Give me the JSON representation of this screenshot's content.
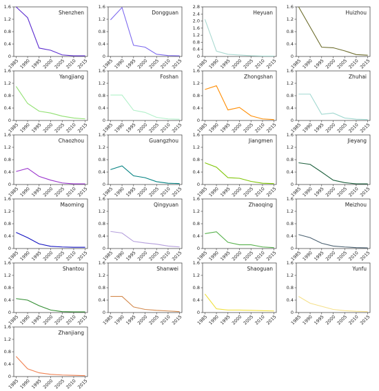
{
  "chart_data": [
    {
      "type": "line",
      "title": "Shenzhen",
      "x": [
        1985,
        1990,
        1995,
        2000,
        2005,
        2010,
        2015
      ],
      "values": [
        1.6,
        1.25,
        0.27,
        0.2,
        0.05,
        0.02,
        0.02
      ],
      "color": "#5b2ccf",
      "xlim": [
        1984,
        2016
      ],
      "xticks": [
        1985,
        1990,
        1995,
        2000,
        2005,
        2010,
        2015
      ],
      "ylim": [
        0,
        1.6
      ],
      "yticks": [
        0,
        0.4,
        0.8,
        1.2,
        1.6
      ]
    },
    {
      "type": "line",
      "title": "Dongguan",
      "x": [
        1985,
        1990,
        1995,
        2000,
        2005,
        2010,
        2015
      ],
      "values": [
        1.18,
        1.58,
        0.36,
        0.3,
        0.07,
        0.03,
        0.02
      ],
      "color": "#7b68ee",
      "xlim": [
        1984,
        2016
      ],
      "xticks": [
        1985,
        1990,
        1995,
        2000,
        2005,
        2010,
        2015
      ],
      "ylim": [
        0,
        1.6
      ],
      "yticks": [
        0,
        0.4,
        0.8,
        1.2,
        1.6
      ]
    },
    {
      "type": "line",
      "title": "Heyuan",
      "x": [
        1985,
        1990,
        1995,
        2000,
        2005,
        2010,
        2015
      ],
      "values": [
        2.1,
        0.3,
        0.12,
        0.08,
        0.04,
        0.02,
        0.02
      ],
      "color": "#a8d8d0",
      "xlim": [
        1984,
        2016
      ],
      "xticks": [
        1985,
        1990,
        1995,
        2000,
        2005,
        2010,
        2015
      ],
      "ylim": [
        0,
        2.8
      ],
      "yticks": [
        0,
        0.4,
        0.8,
        1.2,
        1.6,
        {
          "value": 2,
          "label": "2.0"
        },
        2.4,
        2.8
      ]
    },
    {
      "type": "line",
      "title": "Huizhou",
      "x": [
        1985,
        1990,
        1995,
        2000,
        2005,
        2010,
        2015
      ],
      "values": [
        1.6,
        0.95,
        0.3,
        0.28,
        0.18,
        0.06,
        0.04
      ],
      "color": "#6b6b2a",
      "xlim": [
        1984,
        2016
      ],
      "xticks": [
        1985,
        1990,
        1995,
        2000,
        2005,
        2010,
        2015
      ],
      "ylim": [
        0,
        1.6
      ],
      "yticks": [
        0,
        0.4,
        0.8,
        1.2,
        1.6
      ]
    },
    {
      "type": "line",
      "title": "Yangjiang",
      "x": [
        1985,
        1990,
        1995,
        2000,
        2005,
        2010,
        2015
      ],
      "values": [
        1.1,
        0.55,
        0.3,
        0.24,
        0.14,
        0.08,
        0.05
      ],
      "color": "#90e070",
      "xlim": [
        1984,
        2016
      ],
      "xticks": [
        1985,
        1990,
        1995,
        2000,
        2005,
        2010,
        2015
      ],
      "ylim": [
        0,
        1.6
      ],
      "yticks": [
        0,
        0.4,
        0.8,
        1.2,
        1.6
      ]
    },
    {
      "type": "line",
      "title": "Foshan",
      "x": [
        1985,
        1990,
        1995,
        2000,
        2005,
        2010,
        2015
      ],
      "values": [
        0.82,
        0.82,
        0.33,
        0.26,
        0.1,
        0.05,
        0.04
      ],
      "color": "#b0f0c8",
      "xlim": [
        1984,
        2016
      ],
      "xticks": [
        1985,
        1990,
        1995,
        2000,
        2005,
        2010,
        2015
      ],
      "ylim": [
        0,
        1.6
      ],
      "yticks": [
        0,
        0.4,
        0.8,
        1.2,
        1.6
      ]
    },
    {
      "type": "line",
      "title": "Zhongshan",
      "x": [
        1985,
        1990,
        1995,
        2000,
        2005,
        2010,
        2015
      ],
      "values": [
        1.0,
        1.12,
        0.34,
        0.42,
        0.15,
        0.05,
        0.03
      ],
      "color": "#ff8c00",
      "xlim": [
        1984,
        2016
      ],
      "xticks": [
        1985,
        1990,
        1995,
        2000,
        2005,
        2010,
        2015
      ],
      "ylim": [
        0,
        1.6
      ],
      "yticks": [
        0,
        0.4,
        0.8,
        1.2,
        1.6
      ]
    },
    {
      "type": "line",
      "title": "Zhuhai",
      "x": [
        1985,
        1990,
        1995,
        2000,
        2005,
        2010,
        2015
      ],
      "values": [
        0.85,
        0.85,
        0.2,
        0.24,
        0.08,
        0.04,
        0.03
      ],
      "color": "#a0d8d0",
      "xlim": [
        1984,
        2016
      ],
      "xticks": [
        1985,
        1990,
        1995,
        2000,
        2005,
        2010,
        2015
      ],
      "ylim": [
        0,
        1.6
      ],
      "yticks": [
        0,
        0.4,
        0.8,
        1.2,
        1.6
      ]
    },
    {
      "type": "line",
      "title": "Chaozhou",
      "x": [
        1985,
        1990,
        1995,
        2000,
        2005,
        2010,
        2015
      ],
      "values": [
        0.42,
        0.52,
        0.26,
        0.14,
        0.05,
        0.02,
        0.02
      ],
      "color": "#9932cc",
      "xlim": [
        1984,
        2016
      ],
      "xticks": [
        1985,
        1990,
        1995,
        2000,
        2005,
        2010,
        2015
      ],
      "ylim": [
        0,
        1.6
      ],
      "yticks": [
        0,
        0.4,
        0.8,
        1.2,
        1.6
      ]
    },
    {
      "type": "line",
      "title": "Guangzhou",
      "x": [
        1985,
        1990,
        1995,
        2000,
        2005,
        2010,
        2015
      ],
      "values": [
        0.48,
        0.6,
        0.28,
        0.22,
        0.09,
        0.04,
        0.03
      ],
      "color": "#008080",
      "xlim": [
        1984,
        2016
      ],
      "xticks": [
        1985,
        1990,
        1995,
        2000,
        2005,
        2010,
        2015
      ],
      "ylim": [
        0,
        1.6
      ],
      "yticks": [
        0,
        0.4,
        0.8,
        1.2,
        1.6
      ]
    },
    {
      "type": "line",
      "title": "Jiangmen",
      "x": [
        1985,
        1990,
        1995,
        2000,
        2005,
        2010,
        2015
      ],
      "values": [
        0.7,
        0.56,
        0.22,
        0.2,
        0.1,
        0.04,
        0.03
      ],
      "color": "#7cc400",
      "xlim": [
        1984,
        2016
      ],
      "xticks": [
        1985,
        1990,
        1995,
        2000,
        2005,
        2010,
        2015
      ],
      "ylim": [
        0,
        1.6
      ],
      "yticks": [
        0,
        0.4,
        0.8,
        1.2,
        1.6
      ]
    },
    {
      "type": "line",
      "title": "Jieyang",
      "x": [
        1985,
        1990,
        1995,
        2000,
        2005,
        2010,
        2015
      ],
      "values": [
        0.7,
        0.65,
        0.4,
        0.14,
        0.06,
        0.02,
        0.02
      ],
      "color": "#1b5e3b",
      "xlim": [
        1984,
        2016
      ],
      "xticks": [
        1985,
        1990,
        1995,
        2000,
        2005,
        2010,
        2015
      ],
      "ylim": [
        0,
        1.6
      ],
      "yticks": [
        0,
        0.4,
        0.8,
        1.2,
        1.6
      ]
    },
    {
      "type": "line",
      "title": "Maoming",
      "x": [
        1985,
        1990,
        1995,
        2000,
        2005,
        2010,
        2015
      ],
      "values": [
        0.52,
        0.35,
        0.15,
        0.07,
        0.05,
        0.04,
        0.04
      ],
      "color": "#1010c0",
      "xlim": [
        1984,
        2016
      ],
      "xticks": [
        1985,
        1990,
        1995,
        2000,
        2005,
        2010,
        2015
      ],
      "ylim": [
        0,
        1.6
      ],
      "yticks": [
        0,
        0.4,
        0.8,
        1.2,
        1.6
      ]
    },
    {
      "type": "line",
      "title": "Qingyuan",
      "x": [
        1985,
        1990,
        1995,
        2000,
        2005,
        2010,
        2015
      ],
      "values": [
        0.55,
        0.5,
        0.23,
        0.18,
        0.14,
        0.08,
        0.05
      ],
      "color": "#b39ddb",
      "xlim": [
        1984,
        2016
      ],
      "xticks": [
        1985,
        1990,
        1995,
        2000,
        2005,
        2010,
        2015
      ],
      "ylim": [
        0,
        1.6
      ],
      "yticks": [
        0,
        0.4,
        0.8,
        1.2,
        1.6
      ]
    },
    {
      "type": "line",
      "title": "Zhaoqing",
      "x": [
        1985,
        1990,
        1995,
        2000,
        2005,
        2010,
        2015
      ],
      "values": [
        0.48,
        0.54,
        0.2,
        0.12,
        0.12,
        0.05,
        0.03
      ],
      "color": "#55b04a",
      "xlim": [
        1984,
        2016
      ],
      "xticks": [
        1985,
        1990,
        1995,
        2000,
        2005,
        2010,
        2015
      ],
      "ylim": [
        0,
        1.6
      ],
      "yticks": [
        0,
        0.4,
        0.8,
        1.2,
        1.6
      ]
    },
    {
      "type": "line",
      "title": "Meizhou",
      "x": [
        1985,
        1990,
        1995,
        2000,
        2005,
        2010,
        2015
      ],
      "values": [
        0.45,
        0.35,
        0.17,
        0.08,
        0.05,
        0.03,
        0.02
      ],
      "color": "#4a6070",
      "xlim": [
        1984,
        2016
      ],
      "xticks": [
        1985,
        1990,
        1995,
        2000,
        2005,
        2010,
        2015
      ],
      "ylim": [
        0,
        1.6
      ],
      "yticks": [
        0,
        0.4,
        0.8,
        1.2,
        1.6
      ]
    },
    {
      "type": "line",
      "title": "Shantou",
      "x": [
        1985,
        1990,
        1995,
        2000,
        2005,
        2010,
        2015
      ],
      "values": [
        0.45,
        0.4,
        0.22,
        0.08,
        0.03,
        0.02,
        0.02
      ],
      "color": "#2e8b2e",
      "xlim": [
        1984,
        2016
      ],
      "xticks": [
        1985,
        1990,
        1995,
        2000,
        2005,
        2010,
        2015
      ],
      "ylim": [
        0,
        1.6
      ],
      "yticks": [
        0,
        0.4,
        0.8,
        1.2,
        1.6
      ]
    },
    {
      "type": "line",
      "title": "Shanwei",
      "x": [
        1985,
        1990,
        1995,
        2000,
        2005,
        2010,
        2015
      ],
      "values": [
        0.52,
        0.52,
        0.18,
        0.1,
        0.07,
        0.05,
        0.03
      ],
      "color": "#d2874a",
      "xlim": [
        1984,
        2016
      ],
      "xticks": [
        1985,
        1990,
        1995,
        2000,
        2005,
        2010,
        2015
      ],
      "ylim": [
        0,
        1.6
      ],
      "yticks": [
        0,
        0.4,
        0.8,
        1.2,
        1.6
      ]
    },
    {
      "type": "line",
      "title": "Shaoguan",
      "x": [
        1985,
        1990,
        1995,
        2000,
        2005,
        2010,
        2015
      ],
      "values": [
        0.6,
        0.12,
        0.08,
        0.08,
        0.07,
        0.06,
        0.05
      ],
      "color": "#f0e040",
      "xlim": [
        1984,
        2016
      ],
      "xticks": [
        1985,
        1990,
        1995,
        2000,
        2005,
        2010,
        2015
      ],
      "ylim": [
        0,
        1.6
      ],
      "yticks": [
        0,
        0.4,
        0.8,
        1.2,
        1.6
      ]
    },
    {
      "type": "line",
      "title": "Yunfu",
      "x": [
        1985,
        1990,
        1995,
        2000,
        2005,
        2010,
        2015
      ],
      "values": [
        0.52,
        0.3,
        0.2,
        0.1,
        0.06,
        0.04,
        0.03
      ],
      "color": "#f5e08a",
      "xlim": [
        1984,
        2016
      ],
      "xticks": [
        1985,
        1990,
        1995,
        2000,
        2005,
        2010,
        2015
      ],
      "ylim": [
        0,
        1.6
      ],
      "yticks": [
        0,
        0.4,
        0.8,
        1.2,
        1.6
      ]
    },
    {
      "type": "line",
      "title": "Zhanjiang",
      "x": [
        1985,
        1990,
        1995,
        2000,
        2005,
        2010,
        2015
      ],
      "values": [
        0.65,
        0.25,
        0.12,
        0.07,
        0.05,
        0.04,
        0.03
      ],
      "color": "#f08050",
      "xlim": [
        1984,
        2016
      ],
      "xticks": [
        1985,
        1990,
        1995,
        2000,
        2005,
        2010,
        2015
      ],
      "ylim": [
        0,
        1.6
      ],
      "yticks": [
        0,
        0.4,
        0.8,
        1.2,
        1.6
      ]
    }
  ]
}
